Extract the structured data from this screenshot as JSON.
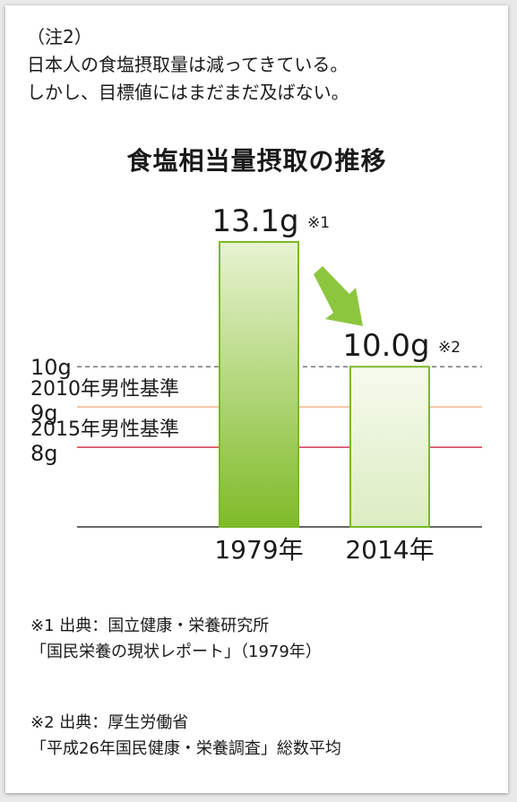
{
  "note": {
    "label": "（注2）",
    "line1": "日本人の食塩摂取量は減ってきている。",
    "line2": "しかし、目標値にはまだまだ及ばない。"
  },
  "chart_data": {
    "type": "bar",
    "title": "食塩相当量摂取の推移",
    "categories": [
      "1979年",
      "2014年"
    ],
    "values": [
      13.1,
      10.0
    ],
    "value_labels": [
      "13.1g",
      "10.0g"
    ],
    "value_notes": [
      "※1",
      "※2"
    ],
    "ylim": [
      6.02,
      13.1
    ],
    "reference_lines": [
      {
        "value": 10,
        "label": "10g",
        "style": "dashed",
        "color": "#777777"
      },
      {
        "value": 9,
        "label_line1": "2010年男性基準",
        "label_line2": "9g",
        "color": "#f0b58a"
      },
      {
        "value": 8,
        "label_line1": "2015年男性基準",
        "label_line2": "8g",
        "color": "#d6384a"
      }
    ],
    "grid": false,
    "colors": {
      "bar1_top": "#e8f3d2",
      "bar1_bottom": "#7fbb28",
      "bar2_top": "#f6faee",
      "bar2_bottom": "#dcedc2",
      "bar_border": "#7ab82a",
      "arrow": "#8cc63f"
    }
  },
  "footnotes": {
    "f1_line1": "※1 出典：国立健康・栄養研究所",
    "f1_line2": "「国民栄養の現状レポート」（1979年）",
    "f2_line1": "※2 出典：厚生労働省",
    "f2_line2": "「平成26年国民健康・栄養調査」総数平均"
  }
}
